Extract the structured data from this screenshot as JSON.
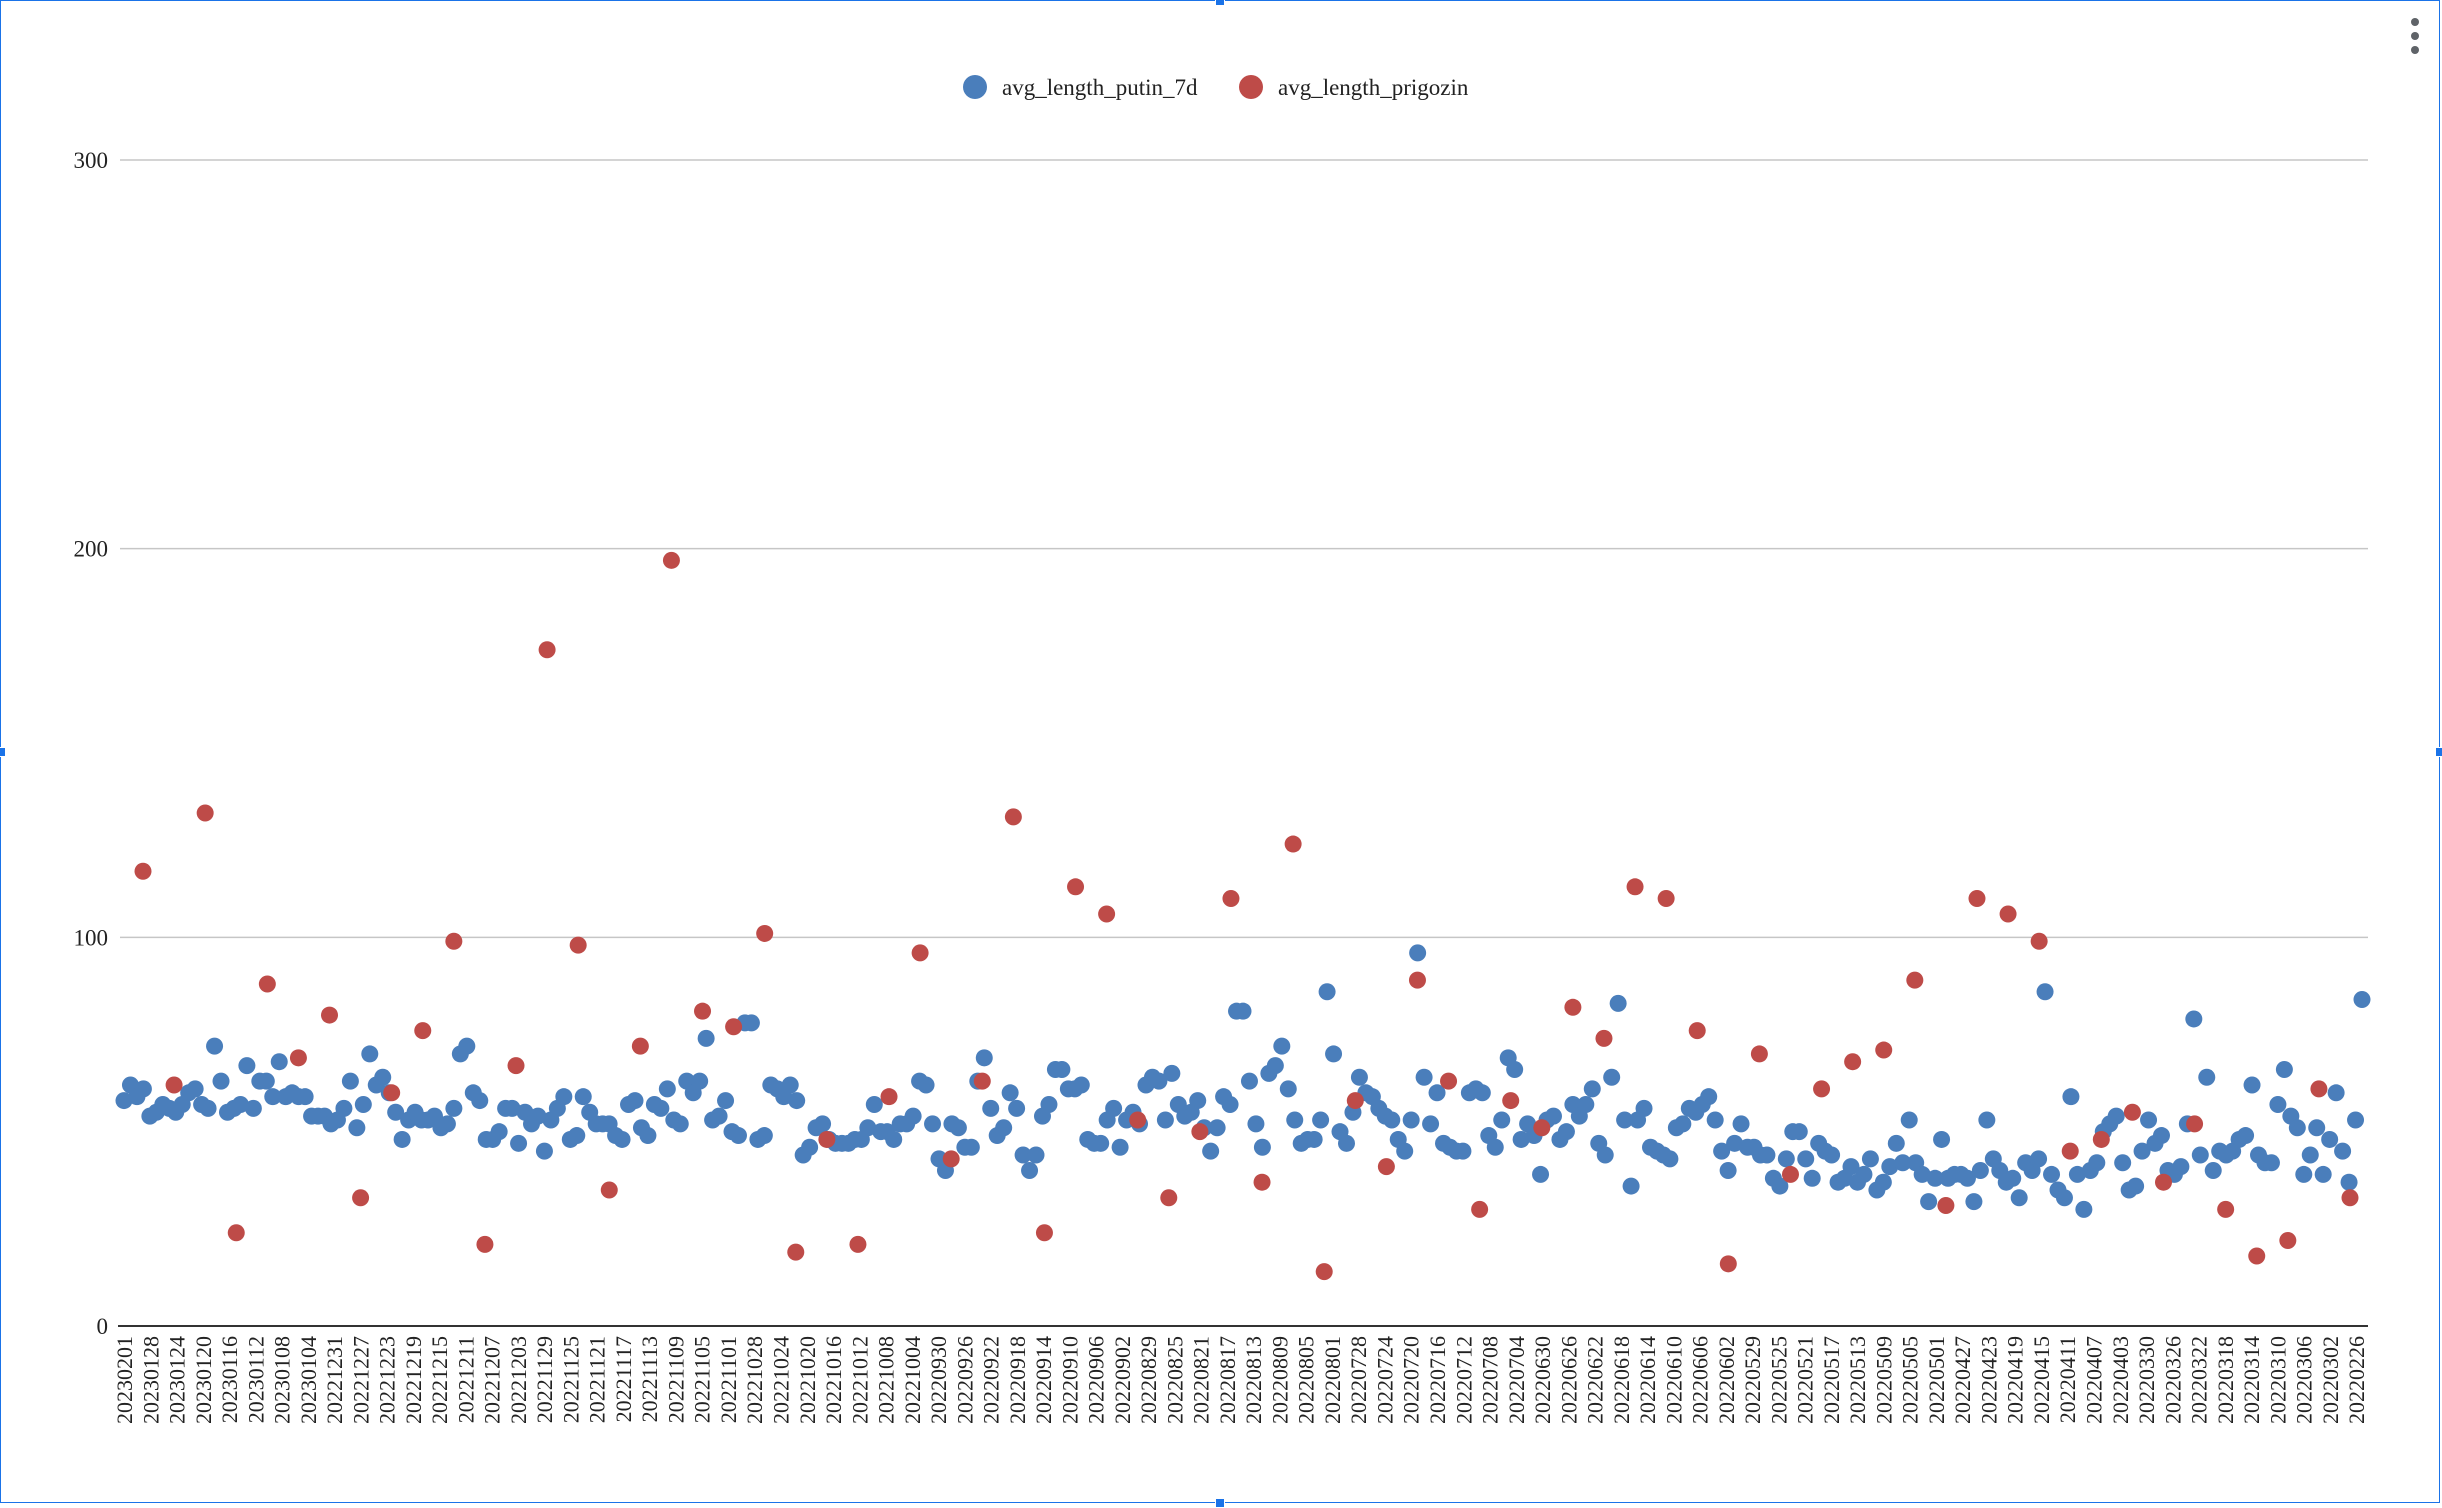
{
  "colors": {
    "putin": "#4a7ebb",
    "prigozin": "#be4b48",
    "grid": "#c6c6c6",
    "axis": "#333333",
    "selection": "#1a73e8"
  },
  "menu": {
    "icon": "more-vert-icon"
  },
  "chart_data": {
    "type": "scatter",
    "title": "",
    "xlabel": "",
    "ylabel": "",
    "legend_position": "top-center",
    "grid": true,
    "ylim": [
      0,
      300
    ],
    "yticks": [
      0,
      100,
      200,
      300
    ],
    "x_order": "descending dates, left to right",
    "x_tick_labels": [
      "20230201",
      "20230128",
      "20230124",
      "20230120",
      "20230116",
      "20230112",
      "20230108",
      "20230104",
      "20221231",
      "20221227",
      "20221223",
      "20221219",
      "20221215",
      "20221211",
      "20221207",
      "20221203",
      "20221129",
      "20221125",
      "20221121",
      "20221117",
      "20221113",
      "20221109",
      "20221105",
      "20221101",
      "20221028",
      "20221024",
      "20221020",
      "20221016",
      "20221012",
      "20221008",
      "20221004",
      "20220930",
      "20220926",
      "20220922",
      "20220918",
      "20220914",
      "20220910",
      "20220906",
      "20220902",
      "20220829",
      "20220825",
      "20220821",
      "20220817",
      "20220813",
      "20220809",
      "20220805",
      "20220801",
      "20220728",
      "20220724",
      "20220720",
      "20220716",
      "20220712",
      "20220708",
      "20220704",
      "20220630",
      "20220626",
      "20220622",
      "20220618",
      "20220614",
      "20220610",
      "20220606",
      "20220602",
      "20220529",
      "20220525",
      "20220521",
      "20220517",
      "20220513",
      "20220509",
      "20220505",
      "20220501",
      "20220427",
      "20220423",
      "20220419",
      "20220415",
      "20220411",
      "20220407",
      "20220403",
      "20220330",
      "20220326",
      "20220322",
      "20220318",
      "20220314",
      "20220310",
      "20220306",
      "20220302",
      "20220226"
    ],
    "series": [
      {
        "name": "avg_length_putin_7d",
        "color": "#4a7ebb",
        "values": [
          58,
          62,
          59,
          61,
          54,
          55,
          57,
          56,
          55,
          57,
          60,
          61,
          57,
          56,
          72,
          63,
          55,
          56,
          57,
          67,
          56,
          63,
          63,
          59,
          68,
          59,
          60,
          59,
          59,
          54,
          54,
          54,
          52,
          53,
          56,
          63,
          51,
          57,
          70,
          62,
          64,
          60,
          55,
          48,
          53,
          55,
          53,
          53,
          54,
          51,
          52,
          56,
          70,
          72,
          60,
          58,
          48,
          48,
          50,
          56,
          56,
          47,
          55,
          52,
          54,
          45,
          53,
          56,
          59,
          48,
          49,
          59,
          55,
          52,
          52,
          52,
          49,
          48,
          57,
          58,
          51,
          49,
          57,
          56,
          61,
          53,
          52,
          63,
          60,
          63,
          74,
          53,
          54,
          58,
          50,
          49,
          78,
          78,
          48,
          49,
          62,
          61,
          59,
          62,
          58,
          44,
          46,
          51,
          52,
          48,
          47,
          47,
          47,
          48,
          48,
          51,
          57,
          50,
          50,
          48,
          52,
          52,
          54,
          63,
          62,
          52,
          43,
          40,
          52,
          51,
          46,
          46,
          63,
          69,
          56,
          49,
          51,
          60,
          56,
          44,
          40,
          44,
          54,
          57,
          66,
          66,
          61,
          61,
          62,
          48,
          47,
          47,
          53,
          56,
          46,
          53,
          55,
          52,
          62,
          64,
          63,
          53,
          65,
          57,
          54,
          55,
          58,
          51,
          45,
          51,
          59,
          57,
          81,
          81,
          63,
          52,
          46,
          65,
          67,
          72,
          61,
          53,
          47,
          48,
          48,
          53,
          86,
          70,
          50,
          47,
          55,
          64,
          60,
          59,
          56,
          54,
          53,
          48,
          45,
          53,
          96,
          64,
          52,
          60,
          47,
          46,
          45,
          45,
          60,
          61,
          60,
          49,
          46,
          53,
          69,
          66,
          48,
          52,
          49,
          39,
          53,
          54,
          48,
          50,
          57,
          54,
          57,
          61,
          47,
          44,
          64,
          83,
          53,
          36,
          53,
          56,
          46,
          45,
          44,
          43,
          51,
          52,
          56,
          55,
          57,
          59,
          53,
          45,
          40,
          47,
          52,
          46,
          46,
          44,
          44,
          38,
          36,
          43,
          50,
          50,
          43,
          38,
          47,
          45,
          44,
          37,
          38,
          41,
          37,
          39,
          43,
          35,
          37,
          41,
          47,
          42,
          53,
          42,
          39,
          32,
          38,
          48,
          38,
          39,
          39,
          38,
          32,
          40,
          53,
          43,
          40,
          37,
          38,
          33,
          42,
          40,
          43,
          86,
          39,
          35,
          33,
          59,
          39,
          30,
          40,
          42,
          50,
          52,
          54,
          42,
          35,
          36,
          45,
          53,
          47,
          49,
          40,
          39,
          41,
          52,
          79,
          44,
          64,
          40,
          45,
          44,
          45,
          48,
          49,
          62,
          44,
          42,
          42,
          57,
          66,
          54,
          51,
          39,
          44,
          51,
          39,
          48,
          60,
          45,
          37,
          53,
          84
        ]
      },
      {
        "name": "avg_length_prigozin",
        "color": "#be4b48",
        "values": [
          117,
          62,
          132,
          24,
          88,
          69,
          80,
          33,
          60,
          76,
          99,
          21,
          67,
          174,
          98,
          35,
          72,
          197,
          81,
          77,
          101,
          19,
          48,
          21,
          59,
          96,
          43,
          63,
          131,
          24,
          113,
          106,
          53,
          33,
          50,
          110,
          37,
          124,
          14,
          58,
          41,
          89,
          63,
          30,
          58,
          51,
          82,
          74,
          113,
          110,
          76,
          16,
          70,
          39,
          61,
          68,
          71,
          89,
          31,
          110,
          106,
          99,
          45,
          48,
          55,
          37,
          52,
          30,
          18,
          22,
          61,
          33
        ]
      }
    ]
  }
}
